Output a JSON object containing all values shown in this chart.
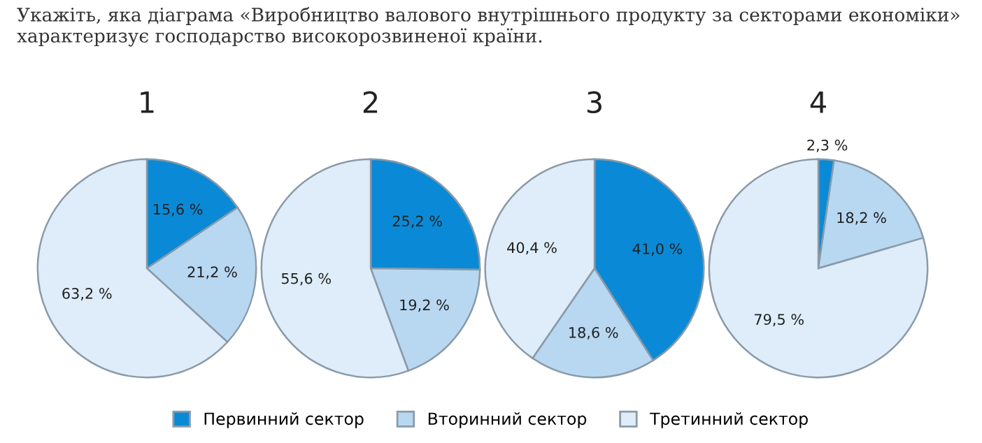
{
  "chart_data": [
    {
      "type": "pie",
      "title": "1",
      "annotations": [
        "Укажіть, яка діаграма «Виробництво валового внутрішнього продукту за секторами економіки» характеризує господарство високорозвиненої країни."
      ],
      "legend": "bottom",
      "categories": [
        "Первинний сектор",
        "Вторинний сектор",
        "Третинний сектор"
      ],
      "values": [
        15.6,
        21.2,
        63.2
      ],
      "value_labels": [
        "15,6 %",
        "21,2 %",
        "63,2 %"
      ],
      "colors": [
        "#0a8ad6",
        "#b8d8f2",
        "#deedf9"
      ]
    },
    {
      "type": "pie",
      "title": "2",
      "categories": [
        null,
        null,
        null
      ],
      "values": [
        25.2,
        19.2,
        55.6
      ],
      "value_labels": [
        "25,2 %",
        "19,2 %",
        "55,6 %"
      ],
      "colors": [
        "#0a8ad6",
        "#b8d8f2",
        "#deedf9"
      ]
    },
    {
      "type": "pie",
      "title": "3",
      "categories": [
        null,
        null,
        null
      ],
      "values": [
        41.0,
        18.6,
        40.4
      ],
      "value_labels": [
        "41,0 %",
        "18,6 %",
        "40,4 %"
      ],
      "colors": [
        "#0a8ad6",
        "#b8d8f2",
        "#deedf9"
      ]
    },
    {
      "type": "pie",
      "title": "4",
      "categories": [
        null,
        null,
        null
      ],
      "values": [
        2.3,
        18.2,
        79.5
      ],
      "value_labels": [
        "2,3 %",
        "18,2 %",
        "79,5 %"
      ],
      "colors": [
        "#0a8ad6",
        "#b8d8f2",
        "#deedf9"
      ]
    }
  ]
}
